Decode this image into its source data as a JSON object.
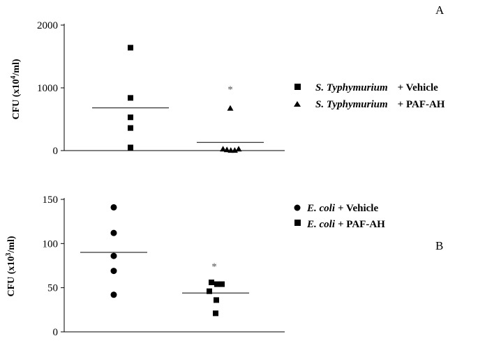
{
  "chart_data": [
    {
      "type": "scatter",
      "panel_label": "A",
      "ylabel": "CFU (x10",
      "ylabel_sup": "4",
      "ylabel_end": "/ml)",
      "ylim": [
        0,
        2000
      ],
      "yticks": [
        0,
        1000,
        2000
      ],
      "grid": false,
      "legend_position": "right",
      "series": [
        {
          "legend_italic": "S. Typhymurium",
          "legend_rest": "+ Vehicle",
          "marker": "square",
          "values": [
            1640,
            840,
            530,
            360,
            50
          ],
          "offsets": [
            0,
            0,
            0,
            0,
            0
          ],
          "mean": 680
        },
        {
          "legend_italic": "S. Typhymurium",
          "legend_rest": "+ PAF-AH",
          "marker": "triangle",
          "values": [
            680,
            30,
            20,
            10,
            10,
            30
          ],
          "offsets": [
            0,
            -1.3,
            -0.6,
            0.1,
            0.8,
            1.5
          ],
          "mean": 130,
          "annotation": "*"
        }
      ]
    },
    {
      "type": "scatter",
      "panel_label": "B",
      "ylabel": "CFU (x10",
      "ylabel_sup": "3",
      "ylabel_end": "/ml)",
      "ylim": [
        0,
        150
      ],
      "yticks": [
        0,
        50,
        100,
        150
      ],
      "grid": false,
      "legend_position": "right",
      "series": [
        {
          "legend_italic": "E. coli",
          "legend_rest": "+ Vehicle",
          "marker": "circle",
          "values": [
            141,
            112,
            86,
            69,
            42
          ],
          "offsets": [
            0,
            0,
            0,
            0,
            0
          ],
          "mean": 90
        },
        {
          "legend_italic": "E. coli",
          "legend_rest": "+ PAF-AH",
          "marker": "square",
          "values": [
            56,
            54,
            54,
            46,
            36,
            21
          ],
          "offsets": [
            -0.6,
            0.2,
            0.9,
            -0.9,
            0.1,
            0
          ],
          "mean": 44,
          "annotation": "*"
        }
      ]
    }
  ]
}
